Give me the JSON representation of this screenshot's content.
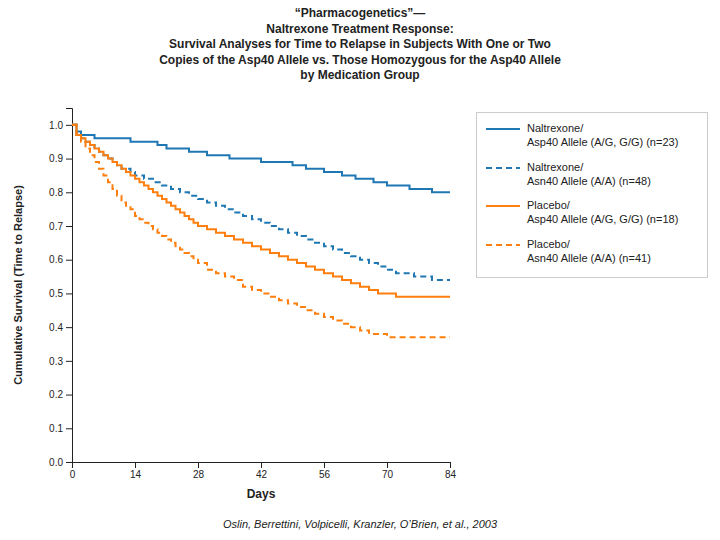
{
  "chart_data": {
    "type": "step",
    "title": "“Pharmacogenetics”—\nNaltrexone Treatment Response:\nSurvival Analyses for Time to Relapse in Subjects With One or Two\nCopies of the Asp40 Allele vs. Those Homozygous for the Asp40 Allele\nby Medication Group",
    "x_label": "Days",
    "y_label": "Cumulative Survival (Time to Relapse)",
    "annotations": [
      "Oslin, Berrettini, Volpicelli, Kranzler, O’Brien, et al., 2003"
    ],
    "xlim": [
      0,
      84
    ],
    "ylim": [
      0.0,
      1.05
    ],
    "xticks": [
      0,
      14,
      28,
      42,
      56,
      70,
      84
    ],
    "yticks": [
      {
        "value": 0.0,
        "label": "0.0"
      },
      0.1,
      0.2,
      0.3,
      0.4,
      0.5,
      0.6,
      0.7,
      0.8,
      0.9,
      {
        "value": 1.0,
        "label": "1.0"
      }
    ],
    "grid": false,
    "legend": "right",
    "series": [
      {
        "name": "Naltrexone/\nAsp40 Allele (A/G, G/G) (n=23)",
        "color": "#1f77b4",
        "line_style": "solid",
        "x": [
          0,
          1,
          2,
          3,
          4,
          5,
          6,
          7,
          8,
          9,
          10,
          11,
          12,
          13,
          14,
          15,
          16,
          17,
          18,
          19,
          20,
          21,
          22,
          23,
          24,
          25,
          26,
          27,
          28,
          30,
          32,
          35,
          38,
          42,
          45,
          49,
          52,
          56,
          60,
          63,
          67,
          70,
          75,
          80,
          84
        ],
        "values": [
          1.0,
          0.98,
          0.97,
          0.97,
          0.97,
          0.96,
          0.96,
          0.96,
          0.96,
          0.96,
          0.96,
          0.96,
          0.96,
          0.95,
          0.95,
          0.95,
          0.95,
          0.95,
          0.95,
          0.94,
          0.94,
          0.93,
          0.93,
          0.93,
          0.93,
          0.93,
          0.92,
          0.92,
          0.92,
          0.91,
          0.91,
          0.9,
          0.9,
          0.89,
          0.89,
          0.88,
          0.87,
          0.86,
          0.85,
          0.84,
          0.83,
          0.82,
          0.81,
          0.8,
          0.8
        ]
      },
      {
        "name": "Naltrexone/\nAsn40 Allele (A/A) (n=48)",
        "color": "#1f77b4",
        "line_style": "dashed",
        "x": [
          0,
          1,
          2,
          3,
          4,
          5,
          6,
          7,
          8,
          9,
          10,
          11,
          12,
          13,
          14,
          16,
          18,
          20,
          22,
          24,
          26,
          28,
          30,
          32,
          34,
          36,
          38,
          40,
          42,
          44,
          46,
          48,
          50,
          52,
          54,
          56,
          58,
          60,
          62,
          64,
          66,
          68,
          70,
          72,
          74,
          76,
          78,
          80,
          82,
          84
        ],
        "values": [
          1.0,
          0.97,
          0.96,
          0.95,
          0.94,
          0.93,
          0.92,
          0.91,
          0.9,
          0.89,
          0.88,
          0.87,
          0.87,
          0.86,
          0.85,
          0.84,
          0.83,
          0.82,
          0.81,
          0.8,
          0.79,
          0.78,
          0.77,
          0.76,
          0.75,
          0.74,
          0.73,
          0.72,
          0.71,
          0.7,
          0.69,
          0.68,
          0.67,
          0.66,
          0.65,
          0.64,
          0.63,
          0.62,
          0.61,
          0.6,
          0.59,
          0.58,
          0.57,
          0.56,
          0.56,
          0.55,
          0.55,
          0.54,
          0.54,
          0.54
        ]
      },
      {
        "name": "Placebo/\nAsp40 Allele (A/G, G/G) (n=18)",
        "color": "#ff7f0e",
        "line_style": "solid",
        "x": [
          0,
          1,
          2,
          3,
          4,
          5,
          6,
          7,
          8,
          9,
          10,
          11,
          12,
          13,
          14,
          15,
          16,
          17,
          18,
          19,
          20,
          21,
          22,
          23,
          24,
          25,
          26,
          27,
          28,
          30,
          32,
          34,
          36,
          38,
          40,
          42,
          44,
          46,
          48,
          50,
          52,
          54,
          56,
          58,
          60,
          62,
          64,
          66,
          68,
          70,
          72,
          74,
          76,
          78,
          80,
          82,
          84
        ],
        "values": [
          1.0,
          0.97,
          0.96,
          0.95,
          0.94,
          0.93,
          0.92,
          0.91,
          0.9,
          0.89,
          0.88,
          0.87,
          0.86,
          0.85,
          0.84,
          0.83,
          0.82,
          0.81,
          0.8,
          0.79,
          0.78,
          0.77,
          0.76,
          0.75,
          0.74,
          0.73,
          0.72,
          0.71,
          0.7,
          0.69,
          0.68,
          0.67,
          0.66,
          0.65,
          0.64,
          0.63,
          0.62,
          0.61,
          0.6,
          0.59,
          0.58,
          0.57,
          0.56,
          0.55,
          0.54,
          0.53,
          0.52,
          0.51,
          0.5,
          0.5,
          0.49,
          0.49,
          0.49,
          0.49,
          0.49,
          0.49,
          0.49
        ]
      },
      {
        "name": "Placebo/\nAsn40 Allele (A/A) (n=41)",
        "color": "#ff7f0e",
        "line_style": "dashed",
        "x": [
          0,
          1,
          2,
          3,
          4,
          5,
          6,
          7,
          8,
          9,
          10,
          11,
          12,
          13,
          14,
          15,
          16,
          17,
          18,
          19,
          20,
          21,
          22,
          23,
          24,
          25,
          26,
          27,
          28,
          30,
          32,
          34,
          36,
          38,
          40,
          42,
          44,
          46,
          48,
          50,
          52,
          54,
          56,
          58,
          60,
          62,
          64,
          66,
          68,
          70,
          72,
          74,
          76,
          78,
          80,
          82,
          84
        ],
        "values": [
          1.0,
          0.97,
          0.95,
          0.93,
          0.91,
          0.89,
          0.87,
          0.85,
          0.83,
          0.81,
          0.79,
          0.77,
          0.76,
          0.75,
          0.73,
          0.72,
          0.71,
          0.7,
          0.69,
          0.68,
          0.67,
          0.66,
          0.65,
          0.64,
          0.63,
          0.62,
          0.61,
          0.6,
          0.59,
          0.57,
          0.56,
          0.55,
          0.54,
          0.52,
          0.51,
          0.5,
          0.49,
          0.48,
          0.47,
          0.46,
          0.45,
          0.44,
          0.43,
          0.42,
          0.41,
          0.4,
          0.39,
          0.38,
          0.38,
          0.37,
          0.37,
          0.37,
          0.37,
          0.37,
          0.37,
          0.37,
          0.37
        ]
      }
    ]
  }
}
